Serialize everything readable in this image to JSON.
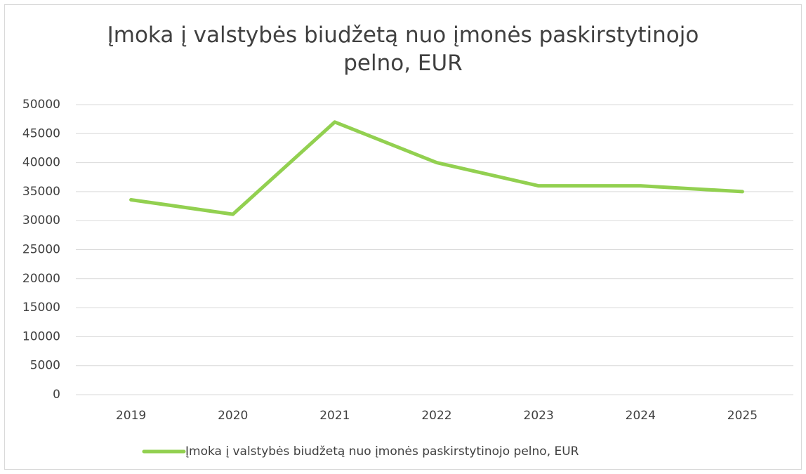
{
  "chart_data": {
    "type": "line",
    "title": "Įmoka į valstybės biudžetą nuo įmonės paskirstytinojo pelno, EUR",
    "categories": [
      "2019",
      "2020",
      "2021",
      "2022",
      "2023",
      "2024",
      "2025"
    ],
    "series": [
      {
        "name": "Įmoka į valstybės biudžetą nuo įmonės paskirstytinojo pelno, EUR",
        "color": "#92d050",
        "values": [
          33600,
          31100,
          47000,
          40000,
          36000,
          36000,
          35000
        ]
      }
    ],
    "ylim": [
      0,
      50000
    ],
    "yticks": [
      0,
      5000,
      10000,
      15000,
      20000,
      25000,
      30000,
      35000,
      40000,
      45000,
      50000
    ],
    "grid": true,
    "legend": "bottom"
  }
}
